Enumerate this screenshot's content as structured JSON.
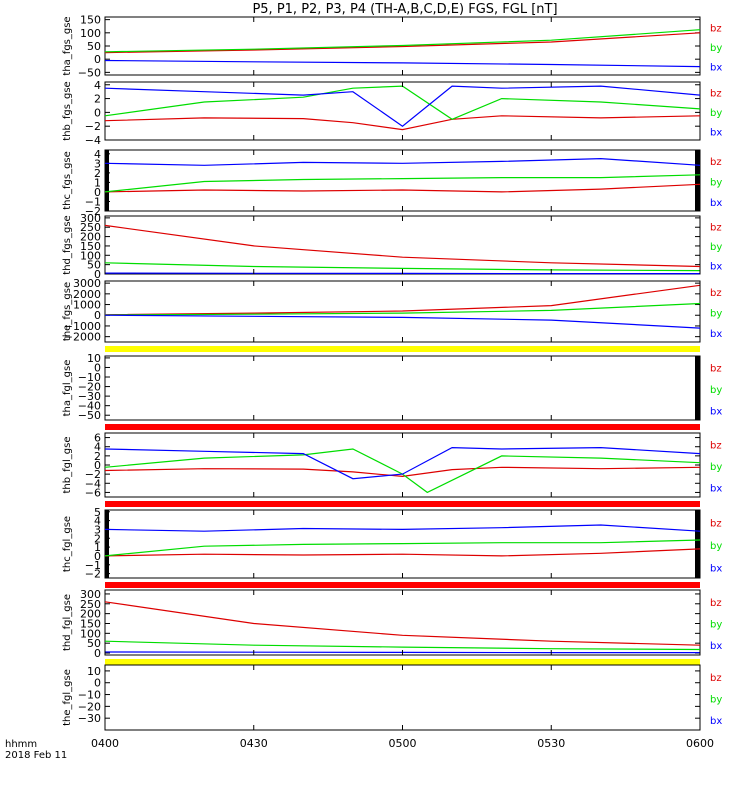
{
  "title": "P5, P1, P2, P3, P4 (TH-A,B,C,D,E) FGS, FGL [nT]",
  "colors": {
    "bx": "#0000ff",
    "by": "#00dd00",
    "bz": "#dd0000",
    "yellow_bar": "#ffff00",
    "red_bar": "#ff0000",
    "gap_fill": "#000000"
  },
  "xaxis": {
    "label_top": "hhmm",
    "label_bottom": "2018 Feb 11",
    "ticks": [
      "0400",
      "0430",
      "0500",
      "0530",
      "0600"
    ]
  },
  "chart_data": [
    {
      "type": "line",
      "ylabel": "tha_fgs_gse",
      "ylim": [
        -60,
        160
      ],
      "yticks": [
        "150",
        "100",
        "50",
        "0",
        "−50"
      ],
      "legend": [
        "bz",
        "by",
        "bx"
      ],
      "x_range": [
        "04:00",
        "06:00"
      ],
      "bar_below": null,
      "right_gap": false,
      "left_gap": false,
      "series": [
        {
          "name": "bz",
          "x": [
            "04:00",
            "04:30",
            "05:00",
            "05:30",
            "06:00"
          ],
          "values": [
            25,
            35,
            48,
            65,
            100
          ]
        },
        {
          "name": "by",
          "x": [
            "04:00",
            "04:30",
            "05:00",
            "05:30",
            "06:00"
          ],
          "values": [
            28,
            38,
            52,
            72,
            112
          ]
        },
        {
          "name": "bx",
          "x": [
            "04:00",
            "04:30",
            "05:00",
            "05:30",
            "06:00"
          ],
          "values": [
            -5,
            -10,
            -14,
            -20,
            -28
          ]
        }
      ]
    },
    {
      "type": "line",
      "ylabel": "thb_fgs_gse",
      "ylim": [
        -4,
        4.4
      ],
      "yticks": [
        "4",
        "2",
        "0",
        "−2",
        "−4"
      ],
      "legend": [
        "bz",
        "by",
        "bx"
      ],
      "bar_below": null,
      "right_gap": false,
      "left_gap": false,
      "series": [
        {
          "name": "bz",
          "x": [
            "04:00",
            "04:20",
            "04:40",
            "04:50",
            "05:00",
            "05:10",
            "05:20",
            "05:40",
            "06:00"
          ],
          "values": [
            -1.2,
            -0.8,
            -0.9,
            -1.5,
            -2.5,
            -1,
            -0.5,
            -0.8,
            -0.5
          ]
        },
        {
          "name": "by",
          "x": [
            "04:00",
            "04:20",
            "04:40",
            "04:50",
            "05:00",
            "05:10",
            "05:20",
            "05:40",
            "06:00"
          ],
          "values": [
            -0.5,
            1.5,
            2.2,
            3.5,
            3.8,
            -1,
            2,
            1.5,
            0.5
          ]
        },
        {
          "name": "bx",
          "x": [
            "04:00",
            "04:20",
            "04:40",
            "04:50",
            "05:00",
            "05:10",
            "05:20",
            "05:40",
            "06:00"
          ],
          "values": [
            3.5,
            3,
            2.5,
            3,
            -2,
            3.8,
            3.5,
            3.8,
            2.5
          ]
        }
      ]
    },
    {
      "type": "line",
      "ylabel": "thc_fgs_gse",
      "ylim": [
        -2,
        4.4
      ],
      "yticks": [
        "4",
        "3",
        "2",
        "1",
        "0",
        "−1",
        "−2"
      ],
      "legend": [
        "bz",
        "by",
        "bx"
      ],
      "bar_below": null,
      "right_gap": true,
      "left_gap": true,
      "series": [
        {
          "name": "bz",
          "x": [
            "04:00",
            "04:20",
            "04:40",
            "05:00",
            "05:20",
            "05:40",
            "06:00"
          ],
          "values": [
            0,
            0.2,
            0.1,
            0.2,
            0,
            0.3,
            0.8
          ]
        },
        {
          "name": "by",
          "x": [
            "04:00",
            "04:20",
            "04:40",
            "05:00",
            "05:20",
            "05:40",
            "06:00"
          ],
          "values": [
            0,
            1.1,
            1.3,
            1.4,
            1.5,
            1.5,
            1.8
          ]
        },
        {
          "name": "bx",
          "x": [
            "04:00",
            "04:20",
            "04:40",
            "05:00",
            "05:20",
            "05:40",
            "06:00"
          ],
          "values": [
            3,
            2.8,
            3.1,
            3,
            3.2,
            3.5,
            2.8
          ]
        }
      ]
    },
    {
      "type": "line",
      "ylabel": "thd_fgs_gse",
      "ylim": [
        0,
        310
      ],
      "yticks": [
        "300",
        "250",
        "200",
        "150",
        "100",
        "50",
        "0"
      ],
      "legend": [
        "bz",
        "by",
        "bx"
      ],
      "bar_below": null,
      "right_gap": false,
      "left_gap": false,
      "series": [
        {
          "name": "bz",
          "x": [
            "04:00",
            "04:30",
            "05:00",
            "05:30",
            "06:00"
          ],
          "values": [
            260,
            150,
            90,
            60,
            40
          ]
        },
        {
          "name": "by",
          "x": [
            "04:00",
            "04:30",
            "05:00",
            "05:30",
            "06:00"
          ],
          "values": [
            60,
            40,
            30,
            22,
            18
          ]
        },
        {
          "name": "bx",
          "x": [
            "04:00",
            "04:30",
            "05:00",
            "05:30",
            "06:00"
          ],
          "values": [
            5,
            4,
            3,
            2,
            2
          ]
        }
      ]
    },
    {
      "type": "line",
      "ylabel": "the_fgs_gse",
      "ylim": [
        -2500,
        3200
      ],
      "yticks": [
        "3000",
        "2000",
        "1000",
        "0",
        "−1000",
        "−2000"
      ],
      "legend": [
        "bz",
        "by",
        "bx"
      ],
      "bar_below": "yellow",
      "right_gap": false,
      "left_gap": false,
      "series": [
        {
          "name": "bz",
          "x": [
            "04:00",
            "04:30",
            "05:00",
            "05:30",
            "06:00"
          ],
          "values": [
            50,
            200,
            400,
            900,
            2800
          ]
        },
        {
          "name": "by",
          "x": [
            "04:00",
            "04:30",
            "05:00",
            "05:30",
            "06:00"
          ],
          "values": [
            20,
            100,
            200,
            450,
            1100
          ]
        },
        {
          "name": "bx",
          "x": [
            "04:00",
            "04:30",
            "05:00",
            "05:30",
            "06:00"
          ],
          "values": [
            0,
            -100,
            -200,
            -450,
            -1200
          ]
        }
      ]
    },
    {
      "type": "line",
      "ylabel": "tha_fgl_gse",
      "ylim": [
        -55,
        12
      ],
      "yticks": [
        "10",
        "0",
        "−10",
        "−20",
        "−30",
        "−40",
        "−50"
      ],
      "legend": [
        "bz",
        "by",
        "bx"
      ],
      "bar_below": "red",
      "right_gap": true,
      "left_gap": false,
      "series": []
    },
    {
      "type": "line",
      "ylabel": "thb_fgl_gse",
      "ylim": [
        -7,
        7
      ],
      "yticks": [
        "6",
        "4",
        "2",
        "0",
        "−2",
        "−4",
        "−6"
      ],
      "legend": [
        "bz",
        "by",
        "bx"
      ],
      "bar_below": "red",
      "right_gap": false,
      "left_gap": false,
      "series": [
        {
          "name": "bz",
          "x": [
            "04:00",
            "04:20",
            "04:40",
            "04:50",
            "05:00",
            "05:10",
            "05:20",
            "05:40",
            "06:00"
          ],
          "values": [
            -1.2,
            -0.8,
            -0.9,
            -1.5,
            -2.5,
            -1,
            -0.5,
            -0.8,
            -0.5
          ]
        },
        {
          "name": "by",
          "x": [
            "04:00",
            "04:20",
            "04:40",
            "04:50",
            "05:00",
            "05:05",
            "05:20",
            "05:40",
            "06:00"
          ],
          "values": [
            -0.5,
            1.5,
            2.2,
            3.5,
            -2,
            -6,
            2,
            1.5,
            0.5
          ]
        },
        {
          "name": "bx",
          "x": [
            "04:00",
            "04:20",
            "04:40",
            "04:50",
            "05:00",
            "05:10",
            "05:20",
            "05:40",
            "06:00"
          ],
          "values": [
            3.5,
            3,
            2.5,
            -3,
            -2,
            3.8,
            3.5,
            3.8,
            2.5
          ]
        }
      ]
    },
    {
      "type": "line",
      "ylabel": "thc_fgl_gse",
      "ylim": [
        -2.5,
        5.2
      ],
      "yticks": [
        "5",
        "4",
        "3",
        "2",
        "1",
        "0",
        "−1",
        "−2"
      ],
      "legend": [
        "bz",
        "by",
        "bx"
      ],
      "bar_below": "red",
      "right_gap": true,
      "left_gap": true,
      "series": [
        {
          "name": "bz",
          "x": [
            "04:00",
            "04:20",
            "04:40",
            "05:00",
            "05:20",
            "05:40",
            "06:00"
          ],
          "values": [
            0,
            0.2,
            0.1,
            0.2,
            0,
            0.3,
            0.8
          ]
        },
        {
          "name": "by",
          "x": [
            "04:00",
            "04:20",
            "04:40",
            "05:00",
            "05:20",
            "05:40",
            "06:00"
          ],
          "values": [
            0,
            1.1,
            1.3,
            1.4,
            1.5,
            1.5,
            1.8
          ]
        },
        {
          "name": "bx",
          "x": [
            "04:00",
            "04:20",
            "04:40",
            "05:00",
            "05:20",
            "05:40",
            "06:00"
          ],
          "values": [
            3,
            2.8,
            3.1,
            3,
            3.2,
            3.5,
            2.8
          ]
        }
      ]
    },
    {
      "type": "line",
      "ylabel": "thd_fgl_gse",
      "ylim": [
        -10,
        320
      ],
      "yticks": [
        "300",
        "250",
        "200",
        "150",
        "100",
        "50",
        "0"
      ],
      "legend": [
        "bz",
        "by",
        "bx"
      ],
      "bar_below": "yellow",
      "right_gap": false,
      "left_gap": false,
      "series": [
        {
          "name": "bz",
          "x": [
            "04:00",
            "04:30",
            "05:00",
            "05:30",
            "06:00"
          ],
          "values": [
            260,
            150,
            90,
            60,
            40
          ]
        },
        {
          "name": "by",
          "x": [
            "04:00",
            "04:30",
            "05:00",
            "05:30",
            "06:00"
          ],
          "values": [
            60,
            40,
            30,
            22,
            18
          ]
        },
        {
          "name": "bx",
          "x": [
            "04:00",
            "04:30",
            "05:00",
            "05:30",
            "06:00"
          ],
          "values": [
            5,
            4,
            3,
            2,
            2
          ]
        }
      ]
    },
    {
      "type": "line",
      "ylabel": "the_fgl_gse",
      "ylim": [
        -40,
        15
      ],
      "yticks": [
        "10",
        "0",
        "−10",
        "−20",
        "−30"
      ],
      "legend": [
        "bz",
        "by",
        "bx"
      ],
      "bar_below": null,
      "right_gap": false,
      "left_gap": false,
      "series": []
    }
  ]
}
